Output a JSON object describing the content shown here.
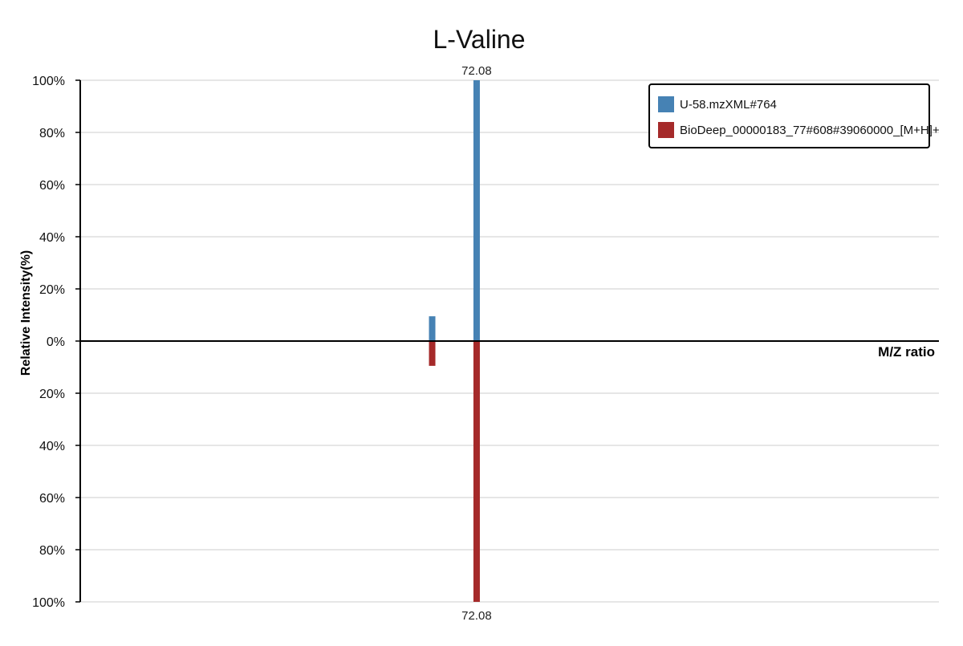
{
  "chart_data": {
    "type": "bar",
    "title": "L-Valine",
    "xlabel": "M/Z ratio",
    "ylabel": "Relative Intensity(%)",
    "yticks_top": [
      "100%",
      "80%",
      "60%",
      "40%",
      "20%",
      "0%"
    ],
    "yticks_bottom": [
      "20%",
      "40%",
      "60%",
      "80%",
      "100%"
    ],
    "ylim": [
      -100,
      100
    ],
    "xlim": [
      58.0,
      88.5
    ],
    "grid": true,
    "legend_position": "top-right",
    "series": [
      {
        "name": "U-58.mzXML#764",
        "color": "#4682b4",
        "direction": "up",
        "peaks": [
          {
            "mz": 70.5,
            "intensity": 9.5
          },
          {
            "mz": 72.08,
            "intensity": 100
          }
        ]
      },
      {
        "name": "BioDeep_00000183_77#608#39060000_[M+H]+",
        "color": "#a52a2a",
        "direction": "down",
        "peaks": [
          {
            "mz": 70.5,
            "intensity": 9.5
          },
          {
            "mz": 72.08,
            "intensity": 100
          }
        ]
      }
    ],
    "annotations": [
      {
        "text": "72.08",
        "series": 0,
        "peak": 1
      },
      {
        "text": "72.08",
        "series": 1,
        "peak": 1
      }
    ]
  }
}
